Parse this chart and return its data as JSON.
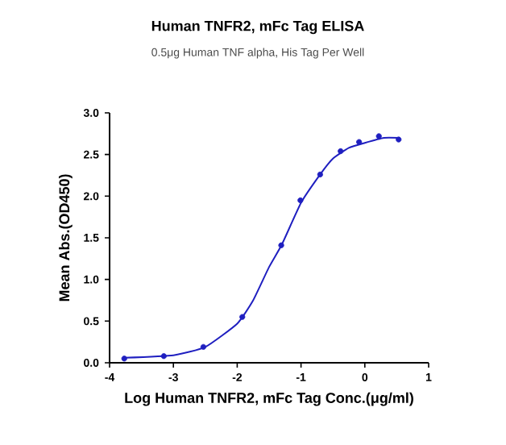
{
  "chart_data": {
    "type": "scatter",
    "title": "Human TNFR2, mFc Tag ELISA",
    "subtitle": "0.5μg Human TNF alpha, His Tag Per Well",
    "xlabel": "Log Human TNFR2, mFc Tag Conc.(μg/ml)",
    "ylabel": "Mean Abs.(OD450)",
    "xlim": [
      -4,
      1
    ],
    "xticks": [
      -4,
      -3,
      -2,
      -1,
      0,
      1
    ],
    "ylim": [
      0,
      3.0
    ],
    "yticks": [
      {
        "value": 0,
        "label": "0.0"
      },
      {
        "value": 0.5,
        "label": "0.5"
      },
      {
        "value": 1.0,
        "label": "1.0"
      },
      {
        "value": 1.5,
        "label": "1.5"
      },
      {
        "value": 2.0,
        "label": "2.0"
      },
      {
        "value": 2.5,
        "label": "2.5"
      },
      {
        "value": 3.0,
        "label": "3.0"
      }
    ],
    "grid": false,
    "marker": "circle",
    "series": [
      {
        "color": "#1f1fc0",
        "x": [
          -3.77,
          -3.15,
          -2.53,
          -1.92,
          -1.31,
          -1.01,
          -0.7,
          -0.38,
          -0.09,
          0.22,
          0.53
        ],
        "values": [
          0.05,
          0.08,
          0.19,
          0.55,
          1.41,
          1.95,
          2.26,
          2.54,
          2.65,
          2.72,
          2.68
        ]
      },
      {
        "type": "line",
        "color": "#1f1fc0",
        "marker": "none",
        "x": [
          -3.77,
          -3.0,
          -2.5,
          -2.0,
          -1.75,
          -1.5,
          -1.3,
          -1.0,
          -0.7,
          -0.5,
          -0.25,
          0.0,
          0.3,
          0.53
        ],
        "values": [
          0.06,
          0.09,
          0.19,
          0.47,
          0.75,
          1.15,
          1.42,
          1.92,
          2.26,
          2.45,
          2.58,
          2.64,
          2.7,
          2.7
        ]
      }
    ]
  }
}
